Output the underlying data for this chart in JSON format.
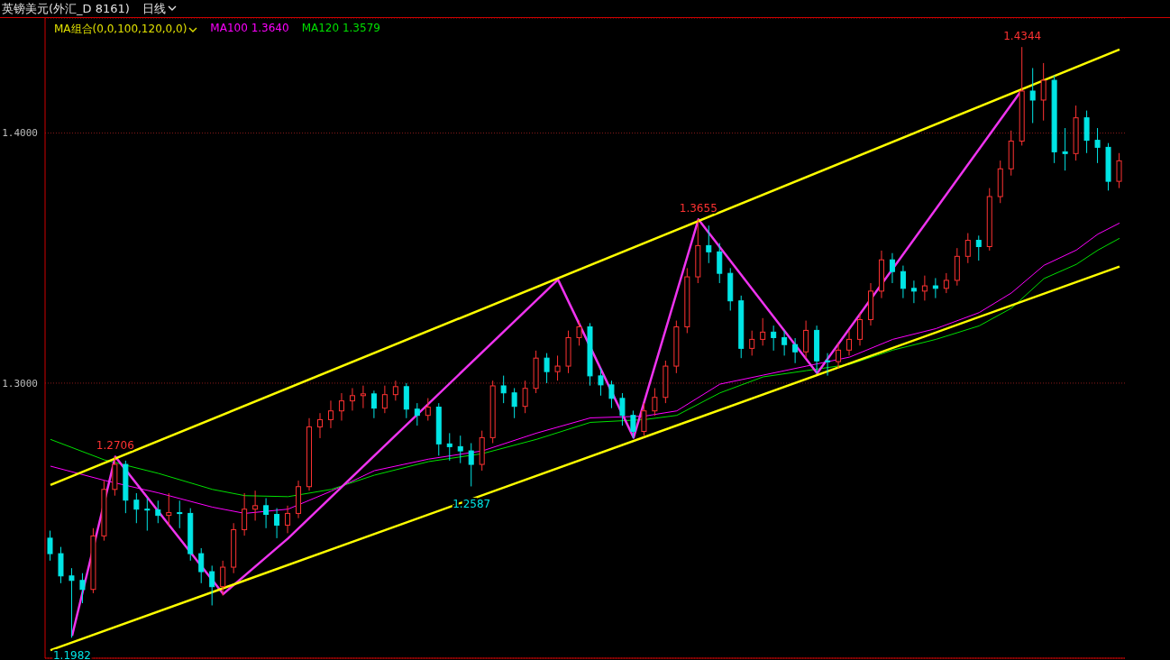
{
  "chart_data": {
    "type": "candlestick",
    "title": "英镑美元(外汇_D 8161)",
    "subtitle": "日线",
    "legend_title": "MA组合(0,0,100,120,0,0)",
    "legend": "top left",
    "grid": "y",
    "ylim": [
      1.19,
      1.446
    ],
    "yticks": [
      {
        "value": 1.3,
        "label": "1.3000"
      },
      {
        "value": 1.4,
        "label": "1.4000"
      }
    ],
    "categories": [
      null,
      null,
      null,
      null,
      null,
      null,
      null,
      null,
      null,
      null,
      null,
      null,
      null,
      null,
      null,
      null,
      null,
      null,
      null,
      null,
      null,
      null,
      null,
      null,
      null,
      null,
      null,
      null,
      null,
      null,
      null,
      null,
      null,
      null,
      null,
      null,
      null,
      null,
      null,
      null,
      null,
      null,
      null,
      null,
      null,
      null,
      null,
      null,
      null,
      null,
      null,
      null,
      null,
      null,
      null,
      null,
      null,
      null,
      null,
      null,
      null,
      null,
      null,
      null,
      null,
      null,
      null,
      null,
      null,
      null,
      null,
      null,
      null,
      null,
      null,
      null,
      null,
      null,
      null,
      null,
      null,
      null,
      null,
      null,
      null,
      null,
      null,
      null,
      null,
      null,
      null,
      null,
      null,
      null,
      null,
      null,
      null,
      null,
      null,
      null
    ],
    "ohlc": [
      [
        1.238,
        1.241,
        1.229,
        1.2318
      ],
      [
        1.2318,
        1.2345,
        1.22,
        1.2229
      ],
      [
        1.2229,
        1.226,
        1.1982,
        1.2211
      ],
      [
        1.2211,
        1.224,
        1.212,
        1.2175
      ],
      [
        1.2175,
        1.242,
        1.216,
        1.2389
      ],
      [
        1.2389,
        1.261,
        1.237,
        1.2575
      ],
      [
        1.2575,
        1.2706,
        1.255,
        1.2675
      ],
      [
        1.2675,
        1.269,
        1.248,
        1.2532
      ],
      [
        1.2532,
        1.256,
        1.244,
        1.2496
      ],
      [
        1.2496,
        1.254,
        1.241,
        1.2493
      ],
      [
        1.2493,
        1.253,
        1.244,
        1.2471
      ],
      [
        1.2471,
        1.256,
        1.243,
        1.2482
      ],
      [
        1.2482,
        1.253,
        1.242,
        1.2479
      ],
      [
        1.2479,
        1.25,
        1.229,
        1.2318
      ],
      [
        1.2318,
        1.234,
        1.22,
        1.2246
      ],
      [
        1.2246,
        1.227,
        1.2111,
        1.2186
      ],
      [
        1.2186,
        1.229,
        1.215,
        1.2264
      ],
      [
        1.2264,
        1.244,
        1.224,
        1.2414
      ],
      [
        1.2414,
        1.256,
        1.239,
        1.2496
      ],
      [
        1.2496,
        1.257,
        1.245,
        1.251
      ],
      [
        1.251,
        1.254,
        1.242,
        1.2475
      ],
      [
        1.2475,
        1.25,
        1.238,
        1.2432
      ],
      [
        1.2432,
        1.251,
        1.24,
        1.2479
      ],
      [
        1.2479,
        1.261,
        1.246,
        1.2586
      ],
      [
        1.2586,
        1.286,
        1.257,
        1.2825
      ],
      [
        1.2825,
        1.288,
        1.278,
        1.2854
      ],
      [
        1.2854,
        1.293,
        1.282,
        1.2889
      ],
      [
        1.2889,
        1.296,
        1.285,
        1.2929
      ],
      [
        1.2929,
        1.298,
        1.289,
        1.295
      ],
      [
        1.295,
        1.299,
        1.29,
        1.2957
      ],
      [
        1.2957,
        1.297,
        1.286,
        1.29
      ],
      [
        1.29,
        1.299,
        1.288,
        1.2954
      ],
      [
        1.2954,
        1.301,
        1.293,
        1.2986
      ],
      [
        1.2986,
        1.3,
        1.286,
        1.2896
      ],
      [
        1.2896,
        1.292,
        1.283,
        1.2871
      ],
      [
        1.2871,
        1.294,
        1.285,
        1.2904
      ],
      [
        1.2904,
        1.292,
        1.271,
        1.2757
      ],
      [
        1.2757,
        1.28,
        1.269,
        1.2746
      ],
      [
        1.2746,
        1.279,
        1.268,
        1.2729
      ],
      [
        1.2729,
        1.276,
        1.2587,
        1.2675
      ],
      [
        1.2675,
        1.281,
        1.265,
        1.2782
      ],
      [
        1.2782,
        1.301,
        1.276,
        1.2989
      ],
      [
        1.2989,
        1.303,
        1.292,
        1.2961
      ],
      [
        1.2961,
        1.298,
        1.286,
        1.2907
      ],
      [
        1.2907,
        1.301,
        1.288,
        1.2979
      ],
      [
        1.2979,
        1.313,
        1.296,
        1.31
      ],
      [
        1.31,
        1.312,
        1.3,
        1.3046
      ],
      [
        1.3046,
        1.311,
        1.301,
        1.3068
      ],
      [
        1.3068,
        1.321,
        1.304,
        1.3182
      ],
      [
        1.3182,
        1.325,
        1.315,
        1.3225
      ],
      [
        1.3225,
        1.324,
        1.299,
        1.3029
      ],
      [
        1.3029,
        1.306,
        1.295,
        1.2993
      ],
      [
        1.2993,
        1.301,
        1.29,
        1.2939
      ],
      [
        1.2939,
        1.296,
        1.283,
        1.2871
      ],
      [
        1.2871,
        1.289,
        1.278,
        1.2807
      ],
      [
        1.2807,
        1.292,
        1.279,
        1.2889
      ],
      [
        1.2889,
        1.298,
        1.287,
        1.2943
      ],
      [
        1.2943,
        1.309,
        1.292,
        1.3068
      ],
      [
        1.3068,
        1.325,
        1.304,
        1.3225
      ],
      [
        1.3225,
        1.346,
        1.32,
        1.3425
      ],
      [
        1.3425,
        1.3655,
        1.34,
        1.355
      ],
      [
        1.355,
        1.363,
        1.348,
        1.3525
      ],
      [
        1.3525,
        1.356,
        1.34,
        1.3439
      ],
      [
        1.3439,
        1.346,
        1.329,
        1.3329
      ],
      [
        1.3329,
        1.335,
        1.31,
        1.3139
      ],
      [
        1.3139,
        1.321,
        1.311,
        1.3175
      ],
      [
        1.3175,
        1.326,
        1.315,
        1.3204
      ],
      [
        1.3204,
        1.323,
        1.313,
        1.3182
      ],
      [
        1.3182,
        1.321,
        1.311,
        1.3154
      ],
      [
        1.3154,
        1.318,
        1.308,
        1.3125
      ],
      [
        1.3125,
        1.325,
        1.31,
        1.3211
      ],
      [
        1.3211,
        1.323,
        1.304,
        1.3089
      ],
      [
        1.3089,
        1.312,
        1.303,
        1.3086
      ],
      [
        1.3086,
        1.316,
        1.306,
        1.3132
      ],
      [
        1.3132,
        1.321,
        1.311,
        1.3175
      ],
      [
        1.3175,
        1.328,
        1.315,
        1.3254
      ],
      [
        1.3254,
        1.34,
        1.323,
        1.3368
      ],
      [
        1.3368,
        1.353,
        1.334,
        1.3493
      ],
      [
        1.3493,
        1.352,
        1.34,
        1.3446
      ],
      [
        1.3446,
        1.347,
        1.334,
        1.3379
      ],
      [
        1.3379,
        1.341,
        1.332,
        1.3368
      ],
      [
        1.3368,
        1.343,
        1.333,
        1.3389
      ],
      [
        1.3389,
        1.342,
        1.334,
        1.3379
      ],
      [
        1.3379,
        1.344,
        1.336,
        1.3411
      ],
      [
        1.3411,
        1.354,
        1.339,
        1.3507
      ],
      [
        1.3507,
        1.36,
        1.348,
        1.3571
      ],
      [
        1.3571,
        1.359,
        1.349,
        1.3546
      ],
      [
        1.3546,
        1.378,
        1.353,
        1.3746
      ],
      [
        1.3746,
        1.389,
        1.372,
        1.3857
      ],
      [
        1.3857,
        1.401,
        1.383,
        1.3968
      ],
      [
        1.3968,
        1.4344,
        1.395,
        1.4168
      ],
      [
        1.4168,
        1.426,
        1.404,
        1.4132
      ],
      [
        1.4132,
        1.428,
        1.405,
        1.4211
      ],
      [
        1.4211,
        1.423,
        1.388,
        1.3925
      ],
      [
        1.3925,
        1.402,
        1.385,
        1.3918
      ],
      [
        1.3918,
        1.411,
        1.389,
        1.4061
      ],
      [
        1.4061,
        1.409,
        1.392,
        1.3971
      ],
      [
        1.3971,
        1.402,
        1.388,
        1.3943
      ],
      [
        1.3943,
        1.396,
        1.377,
        1.3807
      ],
      [
        1.3807,
        1.392,
        1.378,
        1.3889
      ]
    ],
    "series": [
      {
        "type": "line",
        "name": "MA100 1.3640",
        "color": "#ff00ff",
        "values": [
          1.2668,
          null,
          null,
          null,
          null,
          1.2611,
          null,
          null,
          null,
          null,
          1.2561,
          null,
          null,
          null,
          null,
          1.2504,
          null,
          null,
          1.2479,
          null,
          null,
          null,
          1.2496,
          null,
          null,
          null,
          1.2568,
          null,
          null,
          null,
          1.265,
          null,
          null,
          null,
          null,
          1.2696,
          null,
          null,
          null,
          null,
          1.2729,
          null,
          null,
          null,
          null,
          1.28,
          null,
          null,
          null,
          null,
          1.2861,
          null,
          null,
          null,
          null,
          1.2868,
          null,
          null,
          1.2889,
          null,
          null,
          null,
          1.2996,
          null,
          null,
          null,
          1.3032,
          null,
          null,
          null,
          1.3068,
          null,
          null,
          null,
          1.3104,
          null,
          null,
          null,
          1.3175,
          null,
          null,
          null,
          1.3218,
          null,
          null,
          null,
          1.3282,
          null,
          null,
          1.3361,
          null,
          null,
          1.3471,
          null,
          null,
          1.3532,
          null,
          1.3596,
          null,
          1.364
        ]
      },
      {
        "type": "line",
        "name": "MA120 1.3579",
        "color": "#00e000",
        "values": [
          1.2775,
          null,
          null,
          null,
          null,
          1.2693,
          null,
          null,
          null,
          null,
          1.2639,
          null,
          null,
          null,
          null,
          1.2575,
          null,
          null,
          1.255,
          null,
          null,
          null,
          1.2546,
          null,
          null,
          null,
          1.2575,
          null,
          null,
          null,
          1.2632,
          null,
          null,
          null,
          null,
          1.2686,
          null,
          null,
          null,
          null,
          1.2718,
          null,
          null,
          null,
          null,
          1.2775,
          null,
          null,
          null,
          null,
          1.2843,
          null,
          null,
          null,
          null,
          1.2854,
          null,
          null,
          1.2871,
          null,
          null,
          null,
          1.2961,
          null,
          null,
          null,
          1.3025,
          null,
          null,
          null,
          1.305,
          null,
          null,
          null,
          1.3075,
          null,
          null,
          null,
          1.3132,
          null,
          null,
          null,
          1.3175,
          null,
          null,
          null,
          1.3229,
          null,
          null,
          1.33,
          null,
          null,
          1.3418,
          null,
          null,
          1.3475,
          null,
          1.3532,
          null,
          1.3579
        ]
      },
      {
        "type": "line",
        "color": "#ee33ee",
        "values": [
          null,
          null,
          1.1989,
          null,
          null,
          null,
          1.2706,
          null,
          null,
          null,
          null,
          null,
          null,
          null,
          null,
          null,
          1.2157,
          null,
          null,
          null,
          null,
          null,
          1.2379,
          null,
          null,
          null,
          null,
          null,
          null,
          null,
          null,
          null,
          null,
          null,
          null,
          null,
          null,
          null,
          null,
          null,
          null,
          null,
          null,
          null,
          null,
          null,
          null,
          1.3414,
          null,
          null,
          null,
          null,
          null,
          null,
          1.2782,
          null,
          null,
          null,
          null,
          null,
          1.3655,
          null,
          null,
          null,
          null,
          null,
          null,
          null,
          null,
          null,
          null,
          1.3039,
          null,
          null,
          null,
          null,
          null,
          null,
          null,
          null,
          null,
          null,
          null,
          null,
          null,
          null,
          null,
          null,
          null,
          null,
          1.4175,
          null,
          null,
          null,
          null,
          null,
          null,
          null,
          null,
          null
        ]
      },
      {
        "type": "line",
        "color": "#ffff00",
        "values": [
          1.2593,
          null,
          null,
          null,
          null,
          null,
          null,
          null,
          null,
          null,
          null,
          null,
          null,
          null,
          null,
          null,
          null,
          null,
          null,
          null,
          null,
          null,
          null,
          null,
          null,
          null,
          null,
          null,
          null,
          null,
          null,
          null,
          null,
          null,
          null,
          null,
          null,
          null,
          null,
          null,
          null,
          null,
          null,
          null,
          null,
          null,
          null,
          null,
          null,
          null,
          null,
          null,
          null,
          null,
          null,
          null,
          null,
          null,
          null,
          null,
          null,
          null,
          null,
          null,
          null,
          null,
          null,
          null,
          null,
          null,
          null,
          null,
          null,
          null,
          null,
          null,
          null,
          null,
          null,
          null,
          null,
          null,
          null,
          null,
          null,
          null,
          null,
          null,
          null,
          null,
          null,
          null,
          null,
          null,
          null,
          null,
          null,
          null,
          null,
          1.4334
        ]
      },
      {
        "type": "line",
        "color": "#ffff00",
        "values": [
          1.1932,
          null,
          null,
          null,
          null,
          null,
          null,
          null,
          null,
          null,
          null,
          null,
          null,
          null,
          null,
          null,
          null,
          null,
          null,
          null,
          null,
          null,
          null,
          null,
          null,
          null,
          null,
          null,
          null,
          null,
          null,
          null,
          null,
          null,
          null,
          null,
          null,
          null,
          null,
          null,
          null,
          null,
          null,
          null,
          null,
          null,
          null,
          null,
          null,
          null,
          null,
          null,
          null,
          null,
          null,
          null,
          null,
          null,
          null,
          null,
          null,
          null,
          null,
          null,
          null,
          null,
          null,
          null,
          null,
          null,
          null,
          null,
          null,
          null,
          null,
          null,
          null,
          null,
          null,
          null,
          null,
          null,
          null,
          null,
          null,
          null,
          null,
          null,
          null,
          null,
          null,
          null,
          null,
          null,
          null,
          null,
          null,
          null,
          null,
          1.3466
        ]
      }
    ],
    "annotations": [
      {
        "text": "1.2706",
        "y": 1.2706
      },
      {
        "text": "1.1982",
        "y": 1.1982
      },
      {
        "text": "1.2587",
        "y": 1.2587
      },
      {
        "text": "1.3655",
        "y": 1.3655
      },
      {
        "text": "1.4344",
        "y": 1.4344
      }
    ]
  }
}
